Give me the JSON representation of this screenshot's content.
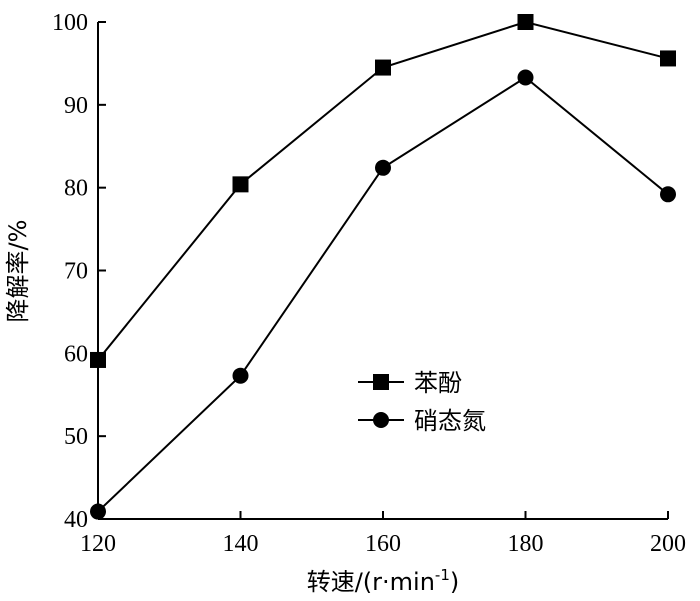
{
  "chart_data": {
    "type": "line",
    "title": "",
    "xlabel": "转速/(r·min",
    "xlabel_sup": "-1",
    "xlabel_close": ")",
    "ylabel": "降解率/%",
    "x": [
      120,
      140,
      160,
      180,
      200
    ],
    "xticks": [
      "120",
      "140",
      "160",
      "180",
      "200"
    ],
    "yticks": [
      "40",
      "50",
      "60",
      "70",
      "80",
      "90",
      "100"
    ],
    "xlim": [
      120,
      200
    ],
    "ylim": [
      40,
      100
    ],
    "grid": false,
    "legend_position": "center-right",
    "series": [
      {
        "name": "苯酚",
        "marker": "square",
        "values": [
          59.2,
          80.4,
          94.5,
          100.0,
          95.6
        ]
      },
      {
        "name": "硝态氮",
        "marker": "circle",
        "values": [
          40.9,
          57.3,
          82.4,
          93.3,
          79.2
        ]
      }
    ],
    "colors": {
      "line": "#000000",
      "marker": "#000000"
    }
  }
}
